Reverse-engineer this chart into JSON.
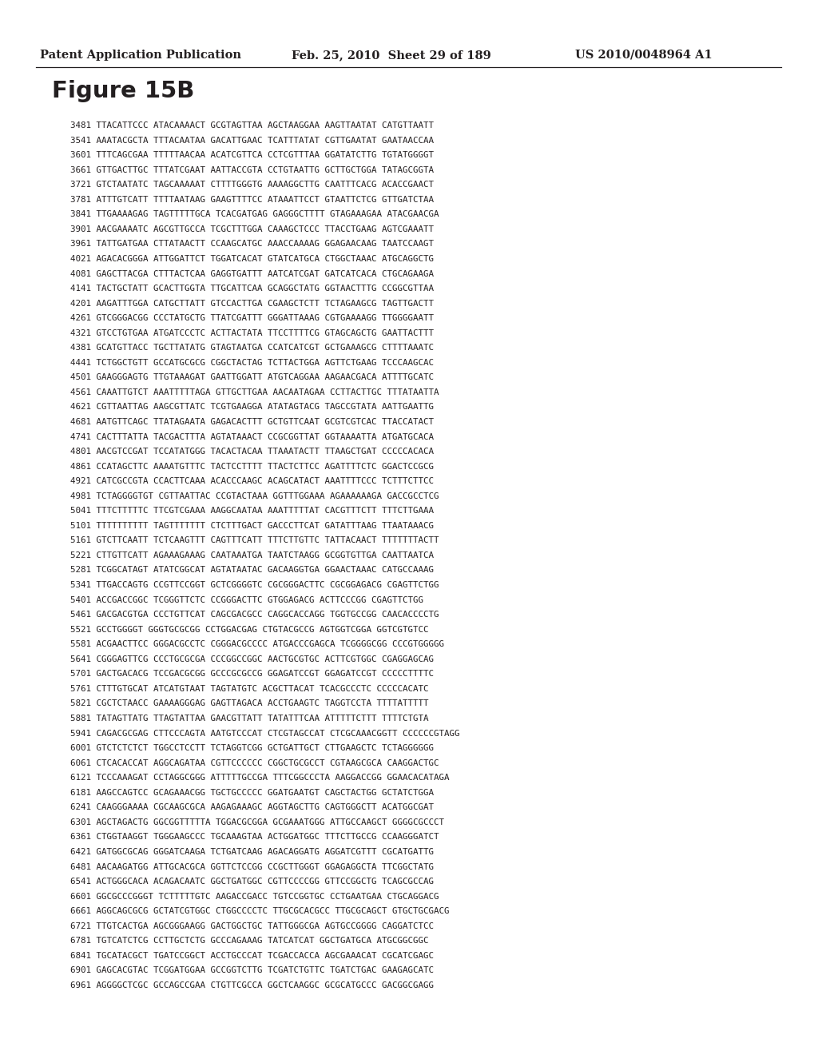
{
  "header_left": "Patent Application Publication",
  "header_mid": "Feb. 25, 2010  Sheet 29 of 189",
  "header_right": "US 2010/0048964 A1",
  "figure_title": "Figure 15B",
  "bg_color": "#ffffff",
  "text_color": "#231f20",
  "header_fontsize": 10.5,
  "title_fontsize": 21,
  "seq_fontsize": 7.85,
  "seq_lines": [
    "3481 TTACATTCCC ATACAAAACT GCGTAGTTAA AGCTAAGGAA AAGTTAATAT CATGTTAATT",
    "3541 AAATACGCTA TTTACAATAA GACATTGAAC TCATTTATAT CGTTGAATAT GAATAACCAA",
    "3601 TTTCAGCGAA TTTTTAACAA ACATCGTTCA CCTCGTTTAA GGATATCTTG TGTATGGGGT",
    "3661 GTTGACTTGC TTTATCGAAT AATTACCGTA CCTGTAATTG GCTTGCTGGA TATAGCGGTA",
    "3721 GTCTAATATC TAGCAAAAAT CTTTTGGGTG AAAAGGCTTG CAATTTCACG ACACCGAACT",
    "3781 ATTTGTCATT TTTTAATAAG GAAGTTTTCC ATAAATTCCT GTAATTCTCG GTTGATCTAA",
    "3841 TTGAAAAGAG TAGTTTTTGCA TCACGATGAG GAGGGCTTTT GTAGAAAGAA ATACGAACGA",
    "3901 AACGAAAATC AGCGTTGCCA TCGCTTTGGA CAAAGCTCCC TTACCTGAAG AGTCGAAATT",
    "3961 TATTGATGAA CTTATAACTT CCAAGCATGC AAACCAAAAG GGAGAACAAG TAATCCAAGT",
    "4021 AGACACGGGA ATTGGATTCT TGGATCACAT GTATCATGCA CTGGCTAAAC ATGCAGGCTG",
    "4081 GAGCTTACGA CTTTACTCAA GAGGTGATTT AATCATCGAT GATCATCACA CTGCAGAAGA",
    "4141 TACTGCTATT GCACTTGGTA TTGCATTCAA GCAGGCTATG GGTAACTTTG CCGGCGTTAA",
    "4201 AAGATTTGGA CATGCTTATT GTCCACTTGA CGAAGCTCTT TCTAGAAGCG TAGTTGACTT",
    "4261 GTCGGGACGG CCCTATGCTG TTATCGATTT GGGATTAAAG CGTGAAAAGG TTGGGGAATT",
    "4321 GTCCTGTGAA ATGATCCCTC ACTTACTATA TTCCTTTTCG GTAGCAGCTG GAATTACTTT",
    "4381 GCATGTTACC TGCTTATATG GTAGTAATGA CCATCATCGT GCTGAAAGCG CTTTTAAATC",
    "4441 TCTGGCTGTT GCCATGCGCG CGGCTACTAG TCTTACTGGA AGTTCTGAAG TCCCAAGCAC",
    "4501 GAAGGGAGTG TTGTAAAGAT GAATTGGATT ATGTCAGGAA AAGAACGACA ATTTTGCATC",
    "4561 CAAATTGTCT AAATTTTTAGA GTTGCTTGAA AACAATAGAA CCTTACTTGC TTTATAATTA",
    "4621 CGTTAATTAG AAGCGTTATC TCGTGAAGGA ATATAGTACG TAGCCGTATA AATTGAATTG",
    "4681 AATGTTCAGC TTATAGAATA GAGACACTTT GCTGTTCAAT GCGTCGTCAC TTACCATACT",
    "4741 CACTTTATTA TACGACTTTA AGTATAAACT CCGCGGTTAT GGTAAAATTA ATGATGCACA",
    "4801 AACGTCCGAT TCCATATGGG TACACTACAA TTAAATACTT TTAAGCTGAT CCCCCACACA",
    "4861 CCATAGCTTC AAAATGTTTC TACTCCTTTT TTACTCTTCC AGATTTTCTC GGACTCCGCG",
    "4921 CATCGCCGTA CCACTTCAAA ACACCCAAGC ACAGCATACT AAATTTTCCC TCTTTCTTCC",
    "4981 TCTAGGGGTGT CGTTAATTAC CCGTACTAAA GGTTTGGAAA AGAAAAAAGA GACCGCCTCG",
    "5041 TTTCTTTTTC TTCGTCGAAA AAGGCAATAA AAATTTTTAT CACGTTTCTT TTTCTTGAAA",
    "5101 TTTTTTTTTT TAGTTTTTTT CTCTTTGACT GACCCTTCAT GATATTTAAG TTAATAAACG",
    "5161 GTCTTCAATT TCTCAAGTTT CAGTTTCATT TTTCTTGTTC TATTACAACT TTTTTTTACTT",
    "5221 CTTGTTCATT AGAAAGAAAG CAATAAATGA TAATCTAAGG GCGGTGTTGA CAATTAATCA",
    "5281 TCGGCATAGT ATATCGGCAT AGTATAATAC GACAAGGTGA GGAACTAAAC CATGCCAAAG",
    "5341 TTGACCAGTG CCGTTCCGGT GCTCGGGGTC CGCGGGACTTC CGCGGAGACG CGAGTTCTGG",
    "5401 ACCGACCGGC TCGGGTTCTC CCGGGACTTC GTGGAGACG ACTTCCCGG CGAGTTCTGG",
    "5461 GACGACGTGA CCCTGTTCAT CAGCGACGCC CAGGCACCAGG TGGTGCCGG CAACACCCCTG",
    "5521 GCCTGGGGT GGGTGCGCGG CCTGGACGAG CTGTACGCCG AGTGGTCGGA GGTCGTGTCC",
    "5581 ACGAACTTCC GGGACGCCTC CGGGACGCCCC ATGACCCGAGCA TCGGGGCGG CCCGTGGGGG",
    "5641 CGGGAGTTCG CCCTGCGCGA CCCGGCCGGC AACTGCGTGC ACTTCGTGGC CGAGGAGCAG",
    "5701 GACTGACACG TCCGACGCGG GCCCGCGCCG GGAGATCCGT GGAGATCCGT CCCCCTTTTC",
    "5761 CTTTGTGCAT ATCATGTAAT TAGTATGTC ACGCTTACAT TCACGCCCTC CCCCCACATC",
    "5821 CGCTCTAACC GAAAAGGGAG GAGTTAGACA ACCTGAAGTC TAGGTCCTA TTTTATTTTT",
    "5881 TATAGTTATG TTAGTATTAA GAACGTTATT TATATTTCAA ATTTTTCTTT TTTTCTGTA",
    "5941 CAGACGCGAG CTTCCCAGTA AATGTCCCAT CTCGTAGCCAT CTCGCAAACGGTT CCCCCCGTAGG",
    "6001 GTCTCTCTCT TGGCCTCCTT TCTAGGTCGG GCTGATTGCT CTTGAAGCTC TCTAGGGGGG",
    "6061 CTCACACCAT AGGCAGATAA CGTTCCCCCC CGGCTGCGCCT CGTAAGCGCA CAAGGACTGC",
    "6121 TCCCAAAGAT CCTAGGCGGG ATTTTTGCCGA TTTCGGCCCTA AAGGACCGG GGAACACATAGA",
    "6181 AAGCCAGTCC GCAGAAACGG TGCTGCCCCC GGATGAATGT CAGCTACTGG GCTATCTGGA",
    "6241 CAAGGGAAAA CGCAAGCGCA AAGAGAAAGC AGGTAGCTTG CAGTGGGCTT ACATGGCGAT",
    "6301 AGCTAGACTG GGCGGTTTTTA TGGACGCGGA GCGAAATGGG ATTGCCAAGCT GGGGCGCCCT",
    "6361 CTGGTAAGGT TGGGAAGCCC TGCAAAGTAA ACTGGATGGC TTTCTTGCCG CCAAGGGATCT",
    "6421 GATGGCGCAG GGGATCAAGA TCTGATCAAG AGACAGGATG AGGATCGTTT CGCATGATTG",
    "6481 AACAAGATGG ATTGCACGCA GGTTCTCCGG CCGCTTGGGT GGAGAGGCTA TTCGGCTATG",
    "6541 ACTGGGCACA ACAGACAATC GGCTGATGGC CGTTCCCCGG GTTCCGGCTG TCAGCGCCAG",
    "6601 GGCGCCCGGGT TCTTTTTGTC AAGACCGACC TGTCCGGTGC CCTGAATGAA CTGCAGGACG",
    "6661 AGGCAGCGCG GCTATCGTGGC CTGGCCCCTC TTGCGCACGCC TTGCGCAGCT GTGCTGCGACG",
    "6721 TTGTCACTGA AGCGGGAAGG GACTGGCTGC TATTGGGCGA AGTGCCGGGG CAGGATCTCC",
    "6781 TGTCATCTCG CCTTGCTCTG GCCCAGAAAG TATCATCAT GGCTGATGCA ATGCGGCGGC",
    "6841 TGCATACGCT TGATCCGGCT ACCTGCCCAT TCGACCACCA AGCGAAACAT CGCATCGAGC",
    "6901 GAGCACGTAC TCGGATGGAA GCCGGTCTTG TCGATCTGTTC TGATCTGAC GAAGAGCATC",
    "6961 AGGGGCTCGC GCCAGCCGAA CTGTTCGCCA GGCTCAAGGC GCGCATGCCC GACGGCGAGG"
  ]
}
